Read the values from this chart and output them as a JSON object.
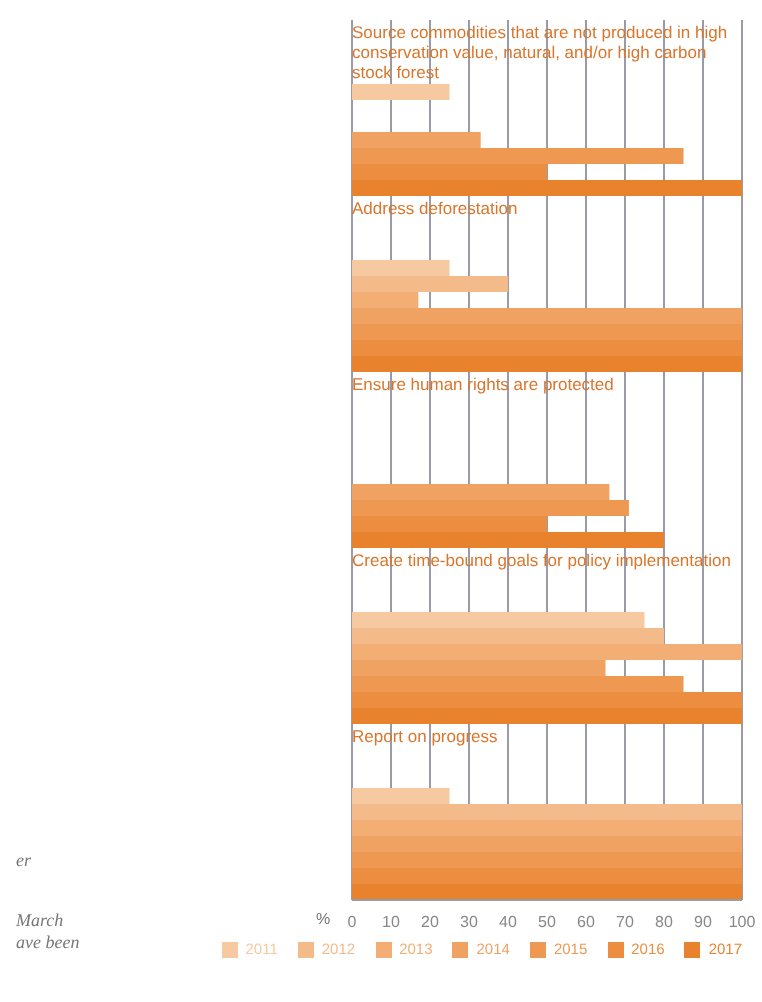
{
  "chart_data": {
    "type": "bar",
    "orientation": "horizontal",
    "xlabel": "%",
    "categories": [
      "Source commodities that are not produced in high conservation value, natural, and/or high carbon stock forest",
      "Address deforestation",
      "Ensure human rights are protected",
      "Create time-bound goals for policy implementation",
      "Report on progress"
    ],
    "series": [
      {
        "name": "2011",
        "color": "#f6c9a0",
        "values": [
          25,
          25,
          null,
          75,
          25
        ]
      },
      {
        "name": "2012",
        "color": "#f4bb8a",
        "values": [
          null,
          40,
          null,
          80,
          100
        ]
      },
      {
        "name": "2013",
        "color": "#f2ae75",
        "values": [
          null,
          17,
          null,
          100,
          100
        ]
      },
      {
        "name": "2014",
        "color": "#f0a263",
        "values": [
          33,
          100,
          66,
          65,
          100
        ]
      },
      {
        "name": "2015",
        "color": "#ee9852",
        "values": [
          85,
          100,
          71,
          85,
          100
        ]
      },
      {
        "name": "2016",
        "color": "#ec8d40",
        "values": [
          50,
          100,
          50,
          100,
          100
        ]
      },
      {
        "name": "2017",
        "color": "#e9822c",
        "values": [
          100,
          100,
          80,
          100,
          100
        ]
      }
    ],
    "xlim": [
      0,
      100
    ],
    "xticks": [
      0,
      10,
      20,
      30,
      40,
      50,
      60,
      70,
      80,
      90,
      100
    ],
    "grid": "x",
    "legend": "bottom",
    "annotations": [
      "er",
      "March",
      "ave been"
    ]
  }
}
